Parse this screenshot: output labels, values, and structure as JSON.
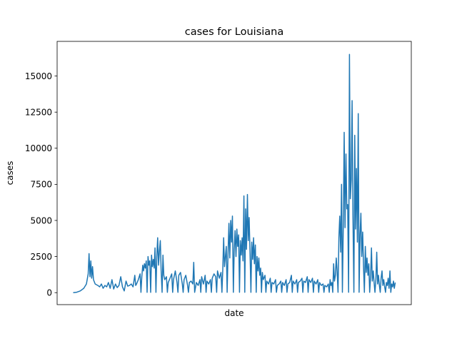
{
  "chart_data": {
    "type": "line",
    "title": "cases for Louisiana",
    "xlabel": "date",
    "ylabel": "cases",
    "ylim": [
      -830,
      17400
    ],
    "yticks": [
      0,
      2500,
      5000,
      7500,
      10000,
      12500,
      15000
    ],
    "ytick_labels": [
      "0",
      "2500",
      "5000",
      "7500",
      "10000",
      "12500",
      "15000"
    ],
    "grid": false,
    "line_color": "#1f77b4",
    "series": [
      {
        "points": [
          [
            0,
            0
          ],
          [
            4,
            30
          ],
          [
            8,
            120
          ],
          [
            12,
            300
          ],
          [
            15,
            600
          ],
          [
            17,
            1300
          ],
          [
            18,
            2700
          ],
          [
            19,
            1100
          ],
          [
            20,
            2200
          ],
          [
            21,
            1000
          ],
          [
            22,
            1800
          ],
          [
            23,
            900
          ],
          [
            25,
            600
          ],
          [
            28,
            500
          ],
          [
            30,
            400
          ],
          [
            32,
            600
          ],
          [
            34,
            300
          ],
          [
            36,
            500
          ],
          [
            38,
            400
          ],
          [
            40,
            700
          ],
          [
            42,
            300
          ],
          [
            44,
            900
          ],
          [
            46,
            250
          ],
          [
            48,
            600
          ],
          [
            50,
            350
          ],
          [
            52,
            500
          ],
          [
            54,
            1100
          ],
          [
            56,
            400
          ],
          [
            58,
            120
          ],
          [
            60,
            800
          ],
          [
            62,
            450
          ],
          [
            64,
            500
          ],
          [
            66,
            600
          ],
          [
            68,
            400
          ],
          [
            70,
            1200
          ],
          [
            71,
            500
          ],
          [
            72,
            600
          ],
          [
            74,
            900
          ],
          [
            76,
            1300
          ],
          [
            77,
            20
          ],
          [
            78,
            1100
          ],
          [
            79,
            1900
          ],
          [
            80,
            1500
          ],
          [
            81,
            2000
          ],
          [
            82,
            1700
          ],
          [
            83,
            2200
          ],
          [
            84,
            20
          ],
          [
            85,
            2500
          ],
          [
            86,
            1900
          ],
          [
            87,
            2200
          ],
          [
            88,
            20
          ],
          [
            89,
            2600
          ],
          [
            90,
            1800
          ],
          [
            91,
            2300
          ],
          [
            92,
            1700
          ],
          [
            93,
            3100
          ],
          [
            94,
            20
          ],
          [
            95,
            2500
          ],
          [
            96,
            3800
          ],
          [
            97,
            1900
          ],
          [
            98,
            2900
          ],
          [
            99,
            3600
          ],
          [
            100,
            1500
          ],
          [
            101,
            20
          ],
          [
            102,
            2600
          ],
          [
            103,
            1200
          ],
          [
            104,
            900
          ],
          [
            106,
            1100
          ],
          [
            107,
            20
          ],
          [
            108,
            700
          ],
          [
            110,
            1000
          ],
          [
            112,
            1300
          ],
          [
            113,
            20
          ],
          [
            114,
            900
          ],
          [
            116,
            1500
          ],
          [
            118,
            700
          ],
          [
            119,
            20
          ],
          [
            120,
            1200
          ],
          [
            122,
            1400
          ],
          [
            124,
            600
          ],
          [
            125,
            20
          ],
          [
            126,
            900
          ],
          [
            128,
            1200
          ],
          [
            130,
            500
          ],
          [
            131,
            20
          ],
          [
            132,
            700
          ],
          [
            134,
            800
          ],
          [
            136,
            600
          ],
          [
            137,
            2100
          ],
          [
            138,
            20
          ],
          [
            140,
            700
          ],
          [
            142,
            500
          ],
          [
            144,
            900
          ],
          [
            145,
            20
          ],
          [
            146,
            1100
          ],
          [
            148,
            600
          ],
          [
            150,
            1200
          ],
          [
            151,
            20
          ],
          [
            152,
            800
          ],
          [
            154,
            600
          ],
          [
            156,
            900
          ],
          [
            157,
            20
          ],
          [
            158,
            1000
          ],
          [
            160,
            1300
          ],
          [
            162,
            1100
          ],
          [
            163,
            20
          ],
          [
            164,
            1500
          ],
          [
            166,
            1000
          ],
          [
            168,
            1400
          ],
          [
            169,
            20
          ],
          [
            170,
            1600
          ],
          [
            171,
            3800
          ],
          [
            172,
            1800
          ],
          [
            173,
            2500
          ],
          [
            174,
            3200
          ],
          [
            175,
            20
          ],
          [
            176,
            2800
          ],
          [
            177,
            4800
          ],
          [
            178,
            2400
          ],
          [
            179,
            5000
          ],
          [
            180,
            3500
          ],
          [
            181,
            5300
          ],
          [
            182,
            20
          ],
          [
            183,
            3000
          ],
          [
            184,
            4300
          ],
          [
            185,
            2500
          ],
          [
            186,
            4400
          ],
          [
            187,
            3200
          ],
          [
            188,
            4000
          ],
          [
            189,
            20
          ],
          [
            190,
            3600
          ],
          [
            191,
            2600
          ],
          [
            192,
            3800
          ],
          [
            193,
            2200
          ],
          [
            194,
            6700
          ],
          [
            195,
            20
          ],
          [
            196,
            5800
          ],
          [
            197,
            3000
          ],
          [
            198,
            6800
          ],
          [
            199,
            3600
          ],
          [
            200,
            5200
          ],
          [
            201,
            2700
          ],
          [
            202,
            20
          ],
          [
            203,
            3500
          ],
          [
            204,
            2300
          ],
          [
            205,
            3800
          ],
          [
            206,
            2000
          ],
          [
            207,
            3300
          ],
          [
            208,
            20
          ],
          [
            209,
            2500
          ],
          [
            210,
            1500
          ],
          [
            211,
            2400
          ],
          [
            212,
            1200
          ],
          [
            213,
            1700
          ],
          [
            214,
            20
          ],
          [
            215,
            1400
          ],
          [
            216,
            900
          ],
          [
            218,
            1200
          ],
          [
            219,
            20
          ],
          [
            220,
            800
          ],
          [
            222,
            600
          ],
          [
            224,
            1000
          ],
          [
            225,
            20
          ],
          [
            226,
            700
          ],
          [
            228,
            600
          ],
          [
            230,
            900
          ],
          [
            231,
            20
          ],
          [
            232,
            500
          ],
          [
            234,
            600
          ],
          [
            236,
            800
          ],
          [
            237,
            20
          ],
          [
            238,
            700
          ],
          [
            240,
            500
          ],
          [
            242,
            900
          ],
          [
            243,
            20
          ],
          [
            244,
            600
          ],
          [
            246,
            700
          ],
          [
            248,
            1200
          ],
          [
            249,
            20
          ],
          [
            250,
            800
          ],
          [
            252,
            600
          ],
          [
            254,
            900
          ],
          [
            255,
            20
          ],
          [
            256,
            700
          ],
          [
            258,
            800
          ],
          [
            260,
            1000
          ],
          [
            261,
            20
          ],
          [
            262,
            800
          ],
          [
            264,
            700
          ],
          [
            266,
            1100
          ],
          [
            267,
            20
          ],
          [
            268,
            900
          ],
          [
            270,
            700
          ],
          [
            272,
            1000
          ],
          [
            273,
            20
          ],
          [
            274,
            800
          ],
          [
            276,
            600
          ],
          [
            278,
            900
          ],
          [
            279,
            20
          ],
          [
            280,
            700
          ],
          [
            282,
            500
          ],
          [
            284,
            600
          ],
          [
            285,
            20
          ],
          [
            286,
            500
          ],
          [
            288,
            400
          ],
          [
            290,
            600
          ],
          [
            291,
            20
          ],
          [
            292,
            900
          ],
          [
            293,
            500
          ],
          [
            294,
            700
          ],
          [
            295,
            20
          ],
          [
            296,
            2000
          ],
          [
            297,
            800
          ],
          [
            298,
            1200
          ],
          [
            299,
            2400
          ],
          [
            300,
            1500
          ],
          [
            301,
            20
          ],
          [
            302,
            3800
          ],
          [
            303,
            5300
          ],
          [
            304,
            2800
          ],
          [
            305,
            7500
          ],
          [
            306,
            20
          ],
          [
            307,
            4800
          ],
          [
            308,
            11100
          ],
          [
            309,
            4500
          ],
          [
            310,
            9600
          ],
          [
            311,
            5800
          ],
          [
            312,
            6100
          ],
          [
            313,
            20
          ],
          [
            314,
            16500
          ],
          [
            315,
            6500
          ],
          [
            316,
            7800
          ],
          [
            317,
            13300
          ],
          [
            318,
            5200
          ],
          [
            319,
            20
          ],
          [
            320,
            10900
          ],
          [
            321,
            4400
          ],
          [
            322,
            8600
          ],
          [
            323,
            3500
          ],
          [
            324,
            12400
          ],
          [
            325,
            20
          ],
          [
            326,
            4000
          ],
          [
            327,
            5500
          ],
          [
            328,
            2500
          ],
          [
            329,
            4200
          ],
          [
            330,
            1800
          ],
          [
            331,
            20
          ],
          [
            332,
            3200
          ],
          [
            333,
            1400
          ],
          [
            334,
            2400
          ],
          [
            335,
            1200
          ],
          [
            336,
            2000
          ],
          [
            337,
            20
          ],
          [
            338,
            1100
          ],
          [
            339,
            3100
          ],
          [
            340,
            800
          ],
          [
            341,
            1500
          ],
          [
            342,
            700
          ],
          [
            343,
            20
          ],
          [
            344,
            900
          ],
          [
            345,
            2800
          ],
          [
            346,
            600
          ],
          [
            347,
            1200
          ],
          [
            348,
            500
          ],
          [
            349,
            20
          ],
          [
            350,
            1000
          ],
          [
            351,
            1500
          ],
          [
            352,
            500
          ],
          [
            353,
            900
          ],
          [
            354,
            400
          ],
          [
            355,
            20
          ],
          [
            356,
            700
          ],
          [
            357,
            500
          ],
          [
            358,
            1000
          ],
          [
            359,
            300
          ],
          [
            360,
            1500
          ],
          [
            361,
            20
          ],
          [
            362,
            600
          ],
          [
            363,
            400
          ],
          [
            364,
            800
          ],
          [
            365,
            300
          ],
          [
            366,
            700
          ]
        ]
      }
    ]
  }
}
